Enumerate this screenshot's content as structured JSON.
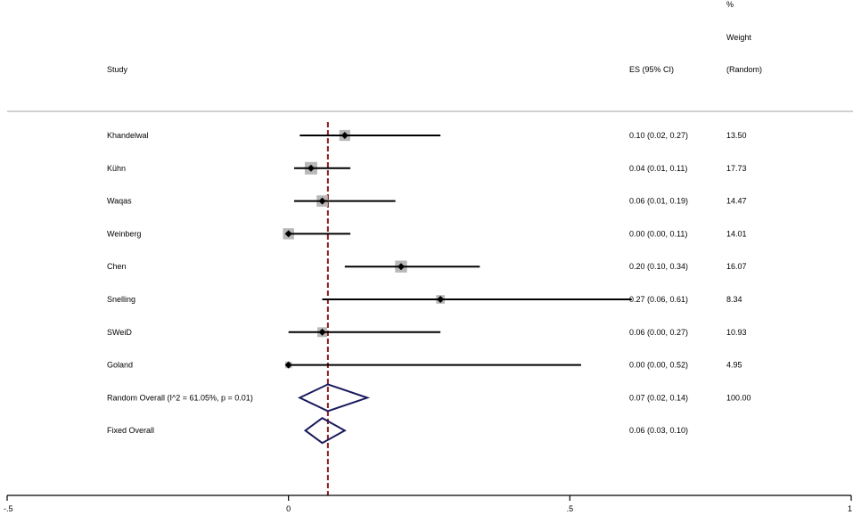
{
  "header": {
    "study": "Study",
    "es": "ES (95% CI)",
    "weight_line1": "%",
    "weight_line2": "Weight",
    "weight_line3": "(Random)"
  },
  "chart_data": {
    "type": "forest",
    "title": "",
    "xlabel": "",
    "xlim": [
      -0.5,
      1
    ],
    "xticks": [
      -0.5,
      0,
      0.5,
      1
    ],
    "xtick_labels": [
      "-.5",
      "0",
      ".5",
      "1"
    ],
    "reference_line": 0.07,
    "studies": [
      {
        "name": "Khandelwal",
        "es": 0.1,
        "lo": 0.02,
        "hi": 0.27,
        "ci_text": "0.10 (0.02, 0.27)",
        "weight": "13.50"
      },
      {
        "name": "Kühn",
        "es": 0.04,
        "lo": 0.01,
        "hi": 0.11,
        "ci_text": "0.04 (0.01, 0.11)",
        "weight": "17.73"
      },
      {
        "name": "Waqas",
        "es": 0.06,
        "lo": 0.01,
        "hi": 0.19,
        "ci_text": "0.06 (0.01, 0.19)",
        "weight": "14.47"
      },
      {
        "name": "Weinberg",
        "es": 0.0,
        "lo": 0.0,
        "hi": 0.11,
        "ci_text": "0.00 (0.00, 0.11)",
        "weight": "14.01"
      },
      {
        "name": "Chen",
        "es": 0.2,
        "lo": 0.1,
        "hi": 0.34,
        "ci_text": "0.20 (0.10, 0.34)",
        "weight": "16.07"
      },
      {
        "name": "Snelling",
        "es": 0.27,
        "lo": 0.06,
        "hi": 0.61,
        "ci_text": "0.27 (0.06, 0.61)",
        "weight": "8.34"
      },
      {
        "name": "SWeiD",
        "es": 0.06,
        "lo": 0.0,
        "hi": 0.27,
        "ci_text": "0.06 (0.00, 0.27)",
        "weight": "10.93"
      },
      {
        "name": "Goland",
        "es": 0.0,
        "lo": 0.0,
        "hi": 0.52,
        "ci_text": "0.00 (0.00, 0.52)",
        "weight": "4.95"
      }
    ],
    "overall": [
      {
        "name": "Random Overall  (I^2 = 61.05%, p = 0.01)",
        "es": 0.07,
        "lo": 0.02,
        "hi": 0.14,
        "ci_text": "0.07 (0.02, 0.14)",
        "weight": "100.00"
      },
      {
        "name": "Fixed Overall",
        "es": 0.06,
        "lo": 0.03,
        "hi": 0.1,
        "ci_text": "0.06 (0.03, 0.10)",
        "weight": ""
      }
    ],
    "colors": {
      "ci_line": "#000000",
      "weight_box": "#b8b8b8",
      "diamond": "#1a1a5e",
      "reference_line": "#8b1a1a",
      "header_rule": "#bfbfbf"
    }
  }
}
